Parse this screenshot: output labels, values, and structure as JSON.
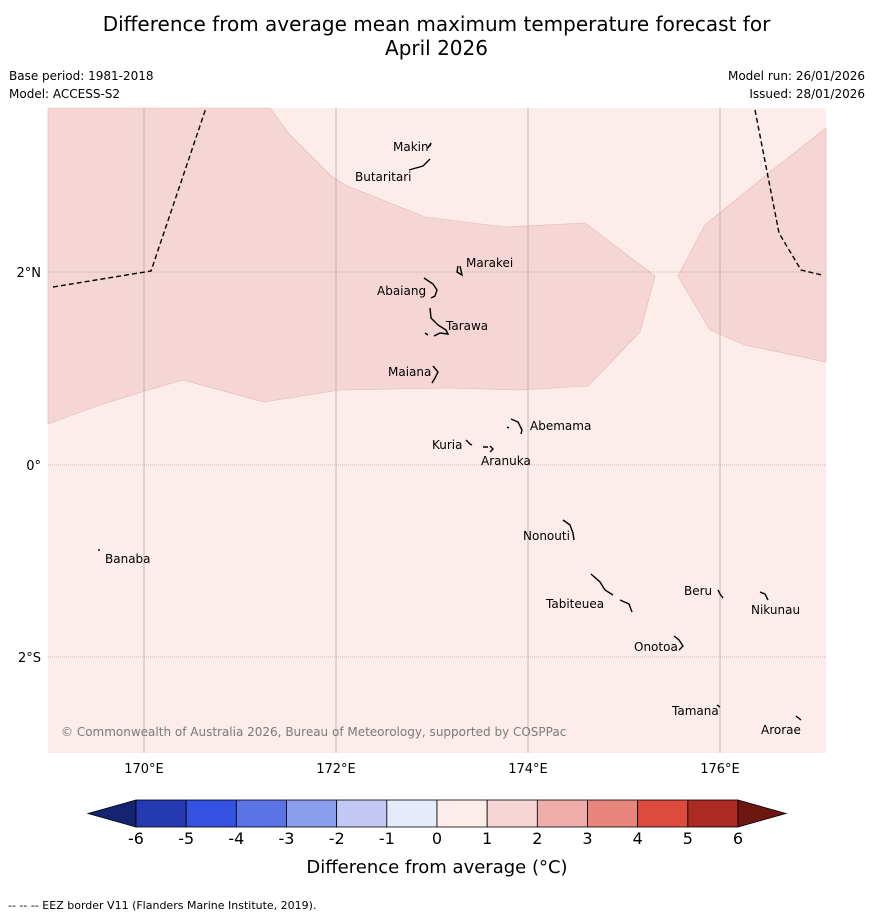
{
  "title": {
    "line1": "Difference from average mean maximum temperature forecast for",
    "line2": "April 2026"
  },
  "meta": {
    "base_period": "Base period: 1981-2018",
    "model": "Model: ACCESS-S2",
    "model_run": "Model run: 26/01/2026",
    "issued": "Issued: 28/01/2026"
  },
  "map": {
    "lat_labels": [
      "2°N",
      "0°",
      "2°S"
    ],
    "lon_labels": [
      "170°E",
      "172°E",
      "174°E",
      "176°E"
    ],
    "places": [
      "Makin",
      "Butaritari",
      "Marakei",
      "Abaiang",
      "Tarawa",
      "Maiana",
      "Abemama",
      "Kuria",
      "Aranuka",
      "Banaba",
      "Nonouti",
      "Beru",
      "Nikunau",
      "Tabiteuea",
      "Onotoa",
      "Tamana",
      "Arorae"
    ],
    "copyright": "© Commonwealth of Australia 2026, Bureau of Meteorology, supported by COSPPac",
    "colors": {
      "band_0_1": "#fcecea",
      "band_1_2": "#f5d6d4",
      "boundary": "#000000"
    }
  },
  "colorbar": {
    "ticks": [
      "-6",
      "-5",
      "-4",
      "-3",
      "-2",
      "-1",
      "0",
      "1",
      "2",
      "3",
      "4",
      "5",
      "6"
    ],
    "colors": [
      "#152470",
      "#2539b3",
      "#3352e0",
      "#5b74e5",
      "#8b9ded",
      "#c3c9f4",
      "#e7eafb",
      "#fcecea",
      "#f5d6d4",
      "#eeada9",
      "#e8857c",
      "#dd4a3e",
      "#ab2a22",
      "#6c1810"
    ],
    "label": "Difference from average (°C)"
  },
  "footer": "--  --  -- EEZ border V11 (Flanders Marine Institute, 2019)."
}
